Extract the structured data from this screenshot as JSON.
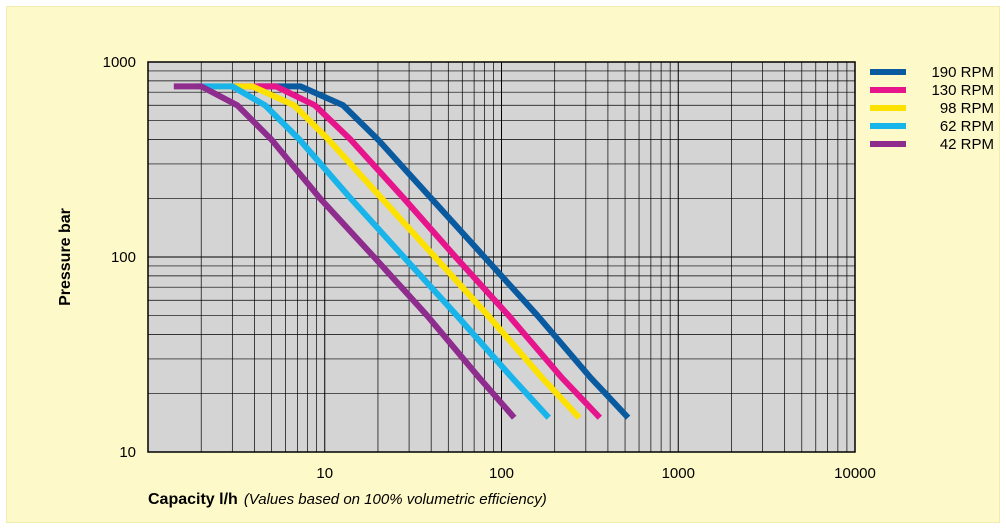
{
  "chart_data": {
    "type": "line",
    "xscale": "log",
    "yscale": "log",
    "xlim": [
      1,
      10000
    ],
    "ylim": [
      10,
      1000
    ],
    "xticks": [
      "10",
      "100",
      "1000",
      "10000"
    ],
    "yticks": [
      "1000",
      "100",
      "10"
    ],
    "xlabel": "Capacity l/h",
    "xlabel_note": "(Values based on 100% volumetric efficiency)",
    "ylabel": "Pressure bar",
    "grid": true,
    "legend_position": "top-right",
    "colors": {
      "background": "#fef9c8",
      "plot_area": "#d4d4d4",
      "grid": "#000000"
    },
    "series": [
      {
        "name": "190 RPM",
        "color": "#0a5aa0",
        "x": [
          4.2,
          7.3,
          12.7,
          20,
          40,
          80,
          160,
          320,
          520
        ],
        "y": [
          750,
          750,
          600,
          400,
          200,
          100,
          50,
          24,
          15
        ]
      },
      {
        "name": "130 RPM",
        "color": "#e6158c",
        "x": [
          3,
          5.3,
          8.8,
          14,
          28,
          55,
          110,
          220,
          360
        ],
        "y": [
          750,
          750,
          600,
          400,
          200,
          100,
          50,
          24,
          15
        ]
      },
      {
        "name": "98 RPM",
        "color": "#fde100",
        "x": [
          2.2,
          3.9,
          6.7,
          10.5,
          21,
          42,
          84,
          170,
          275
        ],
        "y": [
          750,
          750,
          600,
          400,
          200,
          100,
          50,
          24,
          15
        ]
      },
      {
        "name": "62 RPM",
        "color": "#19b4ea",
        "x": [
          1.9,
          3,
          4.6,
          7.2,
          14,
          28,
          56,
          115,
          185
        ],
        "y": [
          750,
          750,
          600,
          400,
          200,
          100,
          50,
          24,
          15
        ]
      },
      {
        "name": "42 RPM",
        "color": "#8e2d8e",
        "x": [
          1.4,
          2,
          3.2,
          5,
          9.4,
          19,
          38,
          75,
          118
        ],
        "y": [
          750,
          750,
          600,
          400,
          200,
          100,
          50,
          24,
          15
        ]
      }
    ]
  }
}
